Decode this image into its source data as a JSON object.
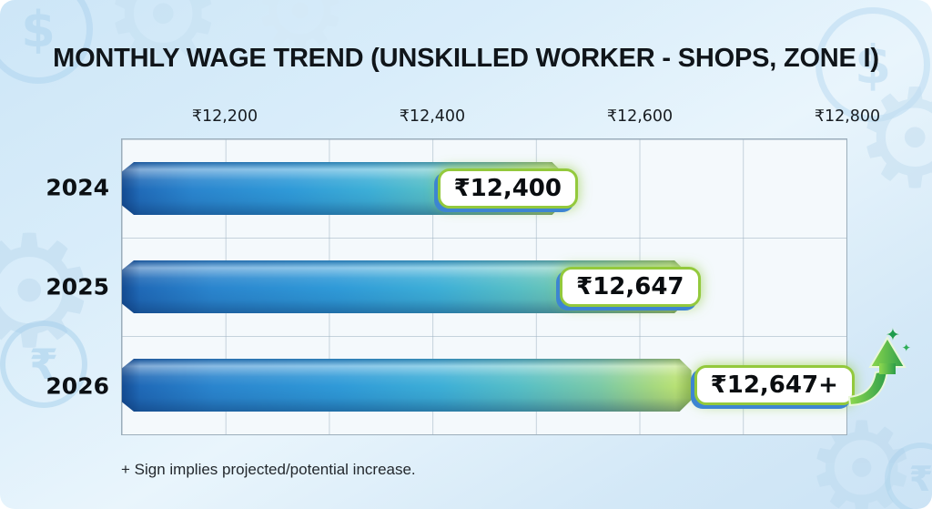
{
  "title": "MONTHLY WAGE TREND (UNSKILLED WORKER - SHOPS, ZONE I)",
  "footnote": "+ Sign implies projected/potential increase.",
  "chart_data": {
    "type": "bar",
    "orientation": "horizontal",
    "title": "MONTHLY WAGE TREND (UNSKILLED WORKER - SHOPS, ZONE I)",
    "categories": [
      "2024",
      "2025",
      "2026"
    ],
    "values": [
      12400,
      12647,
      12647
    ],
    "value_labels": [
      "₹12,400",
      "₹12,647",
      "₹12,647+"
    ],
    "currency": "INR",
    "xlabel": "",
    "ylabel": "",
    "axis": {
      "min": 12100,
      "max": 12800,
      "tick_values": [
        12200,
        12400,
        12600,
        12800
      ],
      "tick_labels": [
        "₹12,200",
        "₹12,400",
        "₹12,600",
        "₹12,800"
      ],
      "tick_positions_pct": [
        14.286,
        42.857,
        71.429,
        100
      ]
    },
    "grid": {
      "vertical_step": 100,
      "vertical_lines": 7,
      "horizontal_row_separators": true
    },
    "legend": "none",
    "annotations": [
      {
        "row": 2,
        "type": "up-arrow-with-sparkles",
        "meaning": "projected/potential increase"
      }
    ],
    "layout_hints": {
      "bar_fractions": [
        0.61,
        0.779,
        0.786
      ],
      "badge_anchor": [
        "inside",
        "inside",
        "outside"
      ],
      "arrow_row": 2,
      "tip_sparkle_row": 2
    }
  },
  "icons": {
    "sparkle": "✦",
    "gear": "⚙",
    "coin_dollar": "$",
    "coin_rupee": "₹"
  },
  "colors": {
    "background_top": "#cde6f7",
    "background_bottom": "#cbe3f5",
    "title_text": "#10151a",
    "bar_blue_start": "#1d63b2",
    "bar_blue_mid": "#2f9ad8",
    "bar_green_end": "#c4e76d",
    "badge_border_green": "#93c93c",
    "badge_shadow_blue": "#3d85d2",
    "arrow_green_light": "#8ed84e",
    "arrow_green_dark": "#2e9e4a",
    "grid_line": "#9eb2c1"
  }
}
